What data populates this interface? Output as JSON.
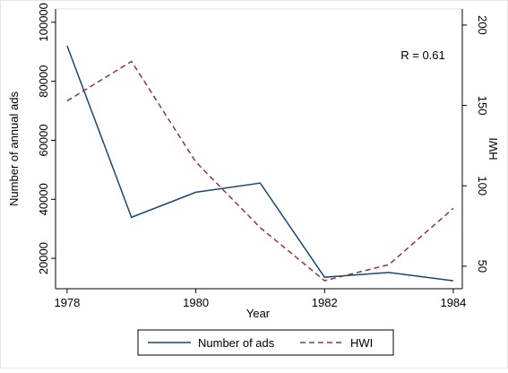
{
  "chart_data": {
    "type": "line",
    "x": [
      1978,
      1979,
      1980,
      1981,
      1982,
      1983,
      1984
    ],
    "xlim": [
      1977.82,
      1984.14
    ],
    "xticks": [
      1978,
      1980,
      1982,
      1984
    ],
    "ylim": [
      9700,
      104500
    ],
    "yticks": [
      20000,
      40000,
      60000,
      80000,
      100000
    ],
    "y2lim": [
      36,
      210
    ],
    "y2ticks": [
      50,
      100,
      150,
      200
    ],
    "xlabel": "Year",
    "ylabel": "Number of annual ads",
    "y2label": "HWI",
    "annotation": "R = 0.61",
    "legend": "bottom",
    "series": [
      {
        "name": "Number of ads",
        "color": "#1a476f",
        "dash": "solid",
        "values": [
          92000,
          33900,
          42400,
          45500,
          13600,
          15200,
          12400
        ]
      },
      {
        "name": "HWI",
        "color": "#90353b",
        "dash": "dashed",
        "axis": "y2",
        "values": [
          152.8,
          177.4,
          114.8,
          74,
          41,
          51,
          86
        ]
      }
    ]
  }
}
